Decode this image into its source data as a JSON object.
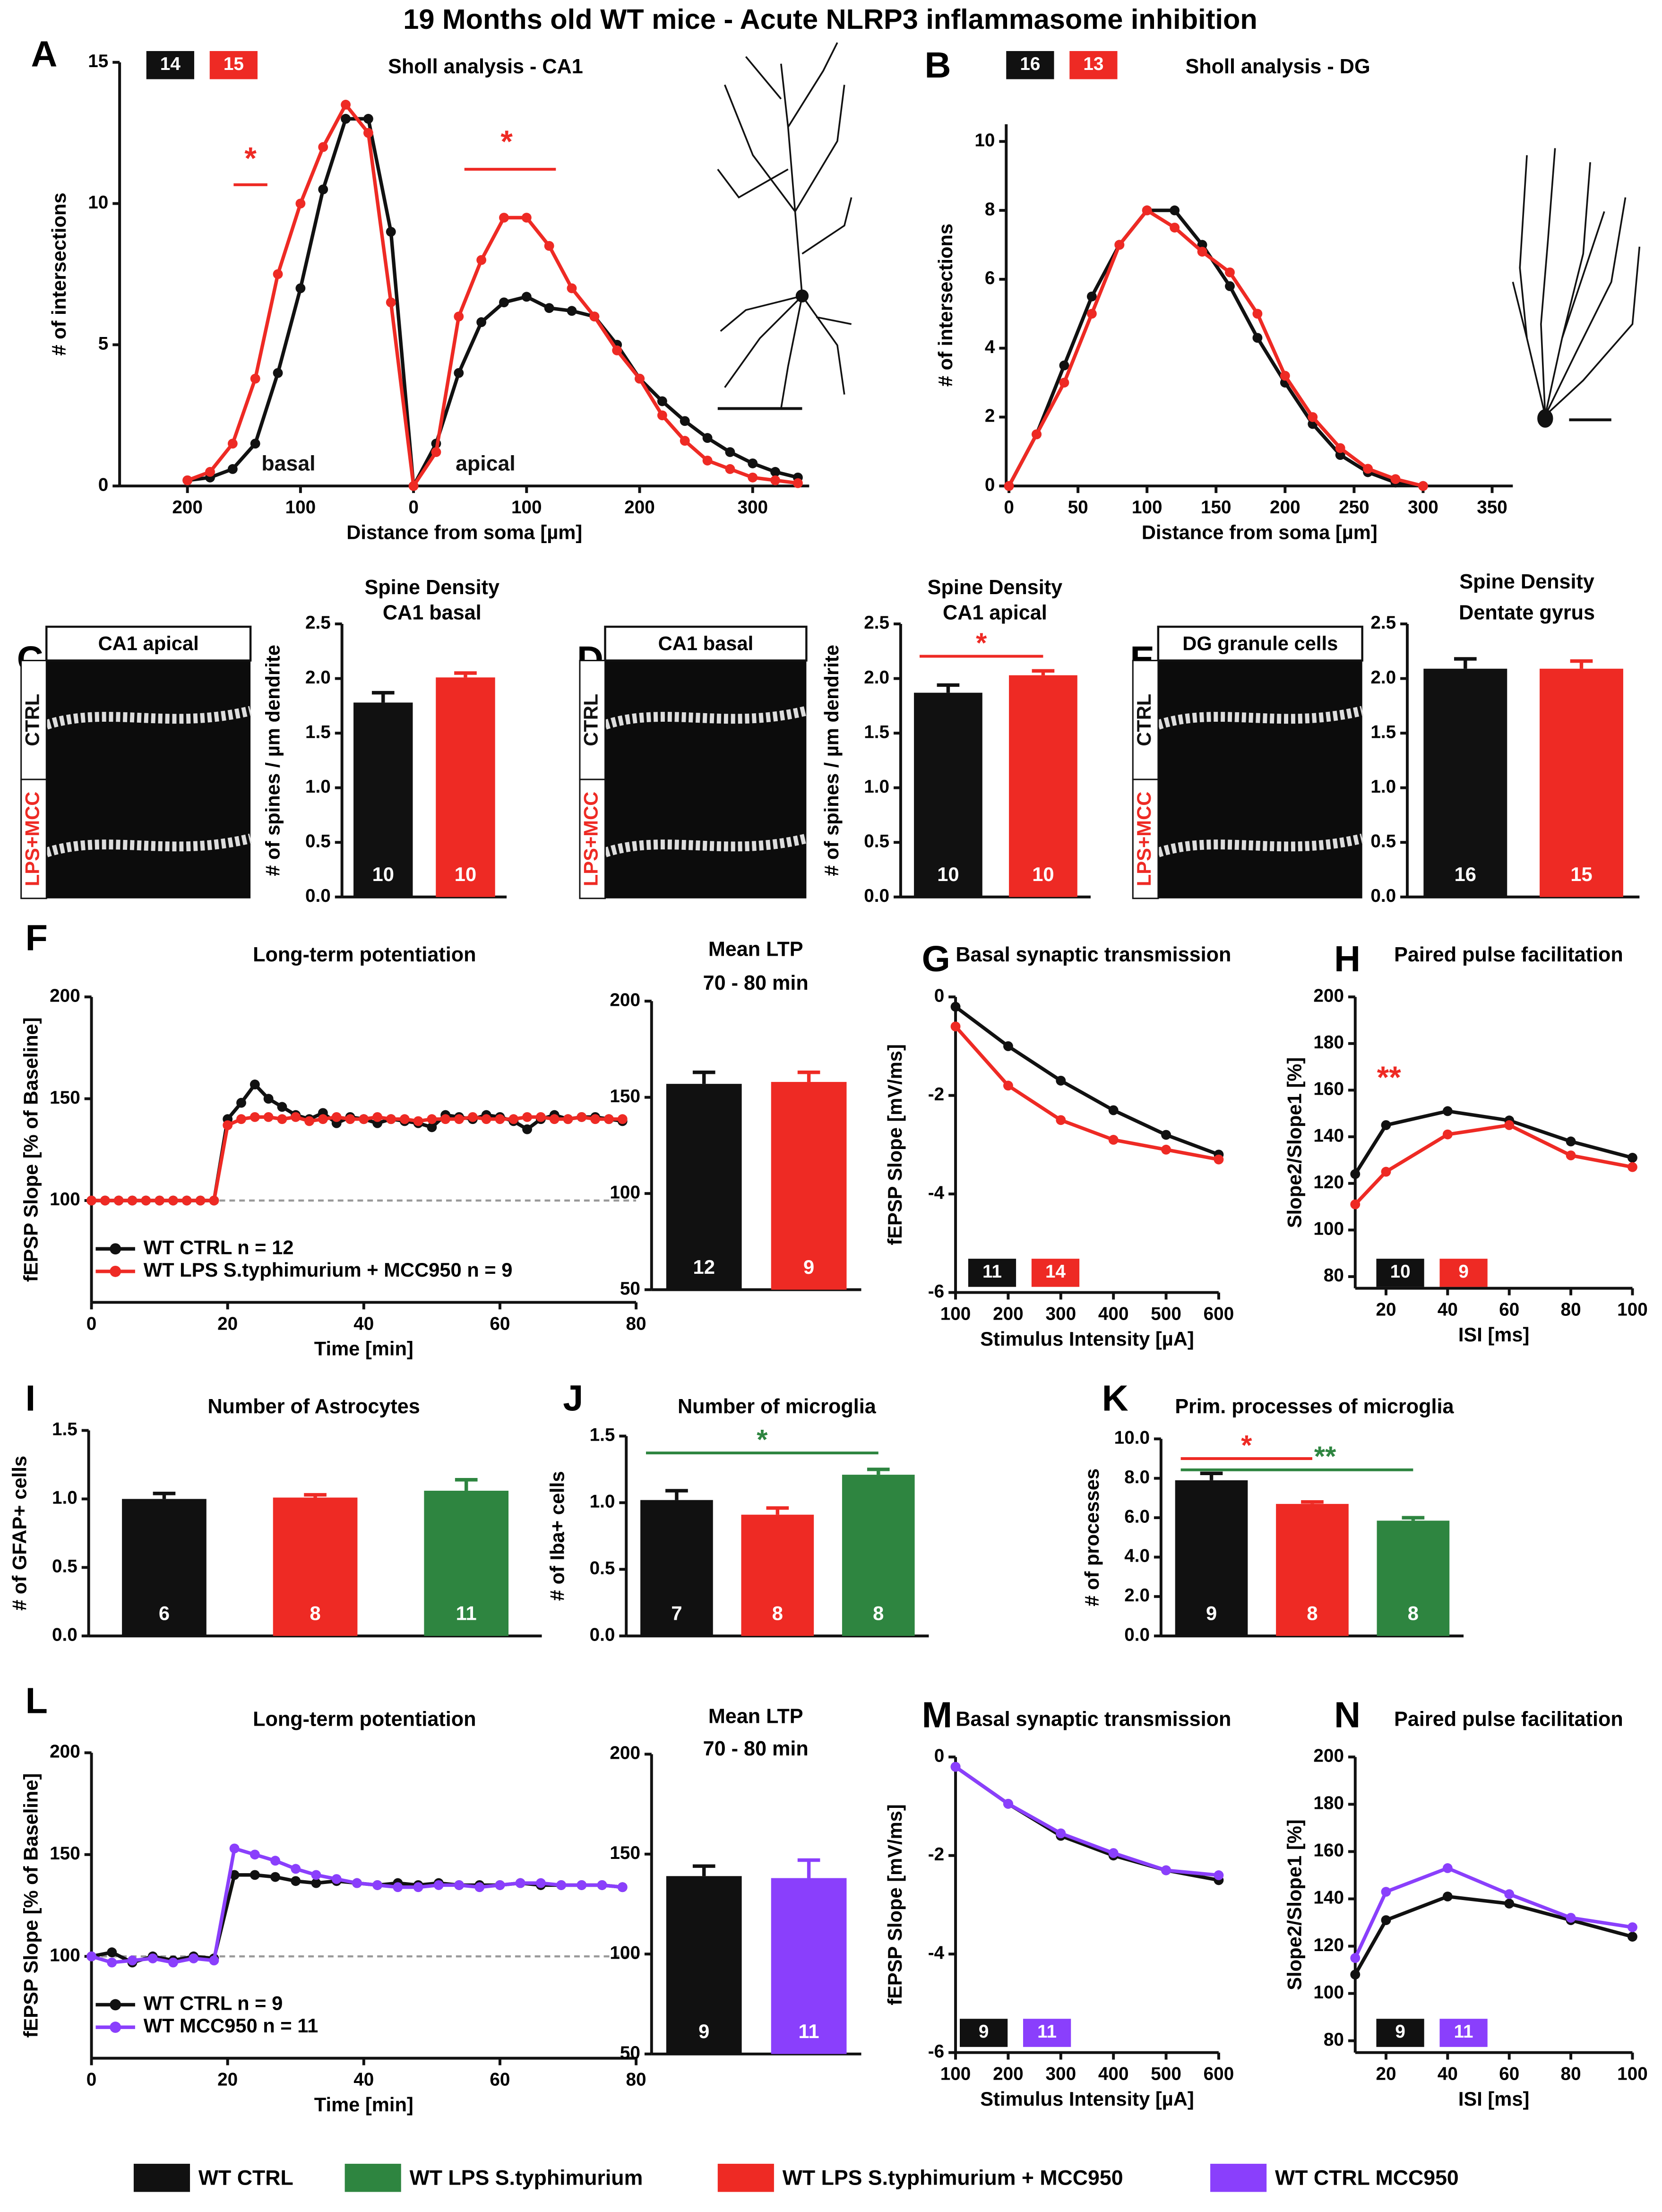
{
  "title": "19 Months old WT mice - Acute NLRP3 inflammasome inhibition",
  "legend": [
    {
      "name": "WT CTRL",
      "color": "#111111"
    },
    {
      "name": "WT LPS S.typhimurium",
      "color": "#2e8540"
    },
    {
      "name": "WT LPS S.typhimurium + MCC950",
      "color": "#ee2a24"
    },
    {
      "name": "WT CTRL MCC950",
      "color": "#8a3ffc"
    }
  ],
  "chart_data": [
    {
      "type": "line",
      "panel": "A",
      "title": "Sholl analysis - CA1",
      "xlabel": "Distance from soma [µm]",
      "ylabel": "# of intersections",
      "badges": [
        14,
        15
      ],
      "x": [
        -200,
        -180,
        -160,
        -140,
        -120,
        -100,
        -80,
        -60,
        -40,
        -20,
        0,
        20,
        40,
        60,
        80,
        100,
        120,
        140,
        160,
        180,
        200,
        220,
        240,
        260,
        280,
        300,
        320,
        340
      ],
      "series": [
        {
          "color": "#111111",
          "values": [
            0.2,
            0.3,
            0.6,
            1.5,
            4,
            7,
            10.5,
            13,
            13,
            9,
            0,
            1.5,
            4,
            5.8,
            6.5,
            6.7,
            6.3,
            6.2,
            6,
            5,
            3.8,
            3,
            2.3,
            1.7,
            1.2,
            0.8,
            0.5,
            0.3
          ]
        },
        {
          "color": "#ee2a24",
          "values": [
            0.2,
            0.5,
            1.5,
            3.8,
            7.5,
            10,
            12,
            13.5,
            12.5,
            6.5,
            0,
            1.2,
            6,
            8,
            9.5,
            9.5,
            8.5,
            7,
            6,
            4.8,
            3.8,
            2.5,
            1.6,
            0.9,
            0.6,
            0.3,
            0.2,
            0.1
          ]
        }
      ],
      "xlim": [
        -260,
        350
      ],
      "xticks": [
        {
          "value": -200,
          "label": "200"
        },
        {
          "value": -100,
          "label": "100"
        },
        0,
        100,
        200,
        300
      ],
      "ylim": [
        0,
        15
      ],
      "yticks": [
        0,
        5,
        10,
        15
      ],
      "annotations": [
        {
          "text": "*",
          "color": "#ee2a24"
        },
        {
          "text": "*",
          "color": "#ee2a24"
        },
        {
          "text": "basal",
          "color": "#111111"
        },
        {
          "text": "apical",
          "color": "#111111"
        }
      ]
    },
    {
      "type": "line",
      "panel": "B",
      "title": "Sholl analysis - DG",
      "xlabel": "Distance from soma [µm]",
      "ylabel": "# of intersections",
      "badges": [
        16,
        13
      ],
      "x": [
        0,
        20,
        40,
        60,
        80,
        100,
        120,
        140,
        160,
        180,
        200,
        220,
        240,
        260,
        280,
        300
      ],
      "series": [
        {
          "color": "#111111",
          "values": [
            0,
            1.5,
            3.5,
            5.5,
            7,
            8,
            8,
            7,
            5.8,
            4.3,
            3,
            1.8,
            0.9,
            0.4,
            0.1,
            0
          ]
        },
        {
          "color": "#ee2a24",
          "values": [
            0,
            1.5,
            3,
            5,
            7,
            8,
            7.5,
            6.8,
            6.2,
            5,
            3.2,
            2,
            1.1,
            0.5,
            0.2,
            0
          ]
        }
      ],
      "xlim": [
        -2,
        365
      ],
      "xticks": [
        0,
        50,
        100,
        150,
        200,
        250,
        300,
        350
      ],
      "ylim": [
        0,
        10.5
      ],
      "yticks": [
        0,
        2,
        4,
        6,
        8,
        10
      ]
    },
    {
      "type": "bar",
      "panel": "C",
      "title": "Spine Density",
      "subtitle": "CA1 basal",
      "ylabel": "# of spines / µm dendrite",
      "image": {
        "title": "CA1 apical",
        "labels": [
          "CTRL",
          "LPS+MCC"
        ]
      },
      "values": [
        1.78,
        2.01
      ],
      "errors": [
        0.09,
        0.04
      ],
      "colors": [
        "#111111",
        "#ee2a24"
      ],
      "n": [
        10,
        10
      ],
      "ylim": [
        0,
        2.5
      ],
      "yticks": [
        {
          "value": 0,
          "label": "0.0"
        },
        {
          "value": 0.5,
          "label": "0.5"
        },
        {
          "value": 1,
          "label": "1.0"
        },
        {
          "value": 1.5,
          "label": "1.5"
        },
        {
          "value": 2,
          "label": "2.0"
        },
        {
          "value": 2.5,
          "label": "2.5"
        }
      ]
    },
    {
      "type": "bar",
      "panel": "D",
      "title": "Spine Density",
      "subtitle": "CA1 apical",
      "ylabel": "# of spines / µm dendrite",
      "image": {
        "title": "CA1 basal",
        "labels": [
          "CTRL",
          "LPS+MCC"
        ]
      },
      "values": [
        1.87,
        2.03
      ],
      "errors": [
        0.07,
        0.04
      ],
      "colors": [
        "#111111",
        "#ee2a24"
      ],
      "n": [
        10,
        10
      ],
      "ylim": [
        0,
        2.5
      ],
      "yticks": [
        {
          "value": 0,
          "label": "0.0"
        },
        {
          "value": 0.5,
          "label": "0.5"
        },
        {
          "value": 1,
          "label": "1.0"
        },
        {
          "value": 1.5,
          "label": "1.5"
        },
        {
          "value": 2,
          "label": "2.0"
        },
        {
          "value": 2.5,
          "label": "2.5"
        }
      ],
      "significance": [
        {
          "text": "*",
          "from": 0,
          "to": 1,
          "color": "#ee2a24"
        }
      ]
    },
    {
      "type": "bar",
      "panel": "E",
      "title": "Spine Density",
      "subtitle": "Dentate gyrus",
      "ylabel": "# of spines / µm dendrite",
      "image": {
        "title": "DG granule cells",
        "labels": [
          "CTRL",
          "LPS+MCC"
        ]
      },
      "values": [
        2.09,
        2.09
      ],
      "errors": [
        0.09,
        0.07
      ],
      "colors": [
        "#111111",
        "#ee2a24"
      ],
      "n": [
        16,
        15
      ],
      "ylim": [
        0,
        2.5
      ],
      "yticks": [
        {
          "value": 0,
          "label": "0.0"
        },
        {
          "value": 0.5,
          "label": "0.5"
        },
        {
          "value": 1,
          "label": "1.0"
        },
        {
          "value": 1.5,
          "label": "1.5"
        },
        {
          "value": 2,
          "label": "2.0"
        },
        {
          "value": 2.5,
          "label": "2.5"
        }
      ]
    },
    {
      "type": "line",
      "panel": "F",
      "title": "Long-term potentiation",
      "xlabel": "Time [min]",
      "ylabel": "fEPSP Slope [% of Baseline]",
      "baseline": 100,
      "x": [
        0,
        2,
        4,
        6,
        8,
        10,
        12,
        14,
        16,
        18,
        20,
        22,
        24,
        26,
        28,
        30,
        32,
        34,
        36,
        38,
        40,
        42,
        44,
        46,
        48,
        50,
        52,
        54,
        56,
        58,
        60,
        62,
        64,
        66,
        68,
        70,
        72,
        74,
        76,
        78
      ],
      "series": [
        {
          "name": "WT CTRL n = 12",
          "color": "#111111",
          "values": [
            100,
            100,
            100,
            100,
            100,
            100,
            100,
            100,
            100,
            100,
            140,
            148,
            157,
            150,
            146,
            142,
            140,
            143,
            138,
            141,
            140,
            138,
            140,
            139,
            138,
            136,
            142,
            141,
            140,
            142,
            141,
            139,
            135,
            140,
            142,
            140,
            141,
            141,
            140,
            139
          ]
        },
        {
          "name": "WT LPS S.typhimurium + MCC950 n = 9",
          "color": "#ee2a24",
          "values": [
            100,
            100,
            100,
            100,
            100,
            100,
            100,
            100,
            100,
            100,
            137,
            140,
            141,
            141,
            140,
            141,
            139,
            140,
            141,
            140,
            140,
            141,
            140,
            140,
            139,
            140,
            140,
            140,
            141,
            140,
            140,
            140,
            141,
            141,
            140,
            140,
            141,
            140,
            140,
            140
          ]
        }
      ],
      "xlim": [
        0,
        80
      ],
      "xticks": [
        0,
        20,
        40,
        60,
        80
      ],
      "ylim": [
        50,
        200
      ],
      "yticks": [
        100,
        150,
        200
      ]
    },
    {
      "type": "bar",
      "title": "Mean LTP",
      "subtitle": "70 - 80 min",
      "values": [
        157,
        158
      ],
      "errors": [
        6,
        5
      ],
      "colors": [
        "#111111",
        "#ee2a24"
      ],
      "n": [
        12,
        9
      ],
      "ylim": [
        50,
        200
      ],
      "yticks": [
        50,
        100,
        150,
        200
      ]
    },
    {
      "type": "line",
      "panel": "G",
      "title": "Basal synaptic transmission",
      "xlabel": "Stimulus Intensity [µA]",
      "ylabel": "fEPSP Slope [mV/ms]",
      "badges": [
        11,
        14
      ],
      "x": [
        100,
        200,
        300,
        400,
        500,
        600
      ],
      "series": [
        {
          "color": "#111111",
          "values": [
            -0.2,
            -1,
            -1.7,
            -2.3,
            -2.8,
            -3.2
          ]
        },
        {
          "color": "#ee2a24",
          "values": [
            -0.6,
            -1.8,
            -2.5,
            -2.9,
            -3.1,
            -3.3
          ]
        }
      ],
      "xlim": [
        100,
        600
      ],
      "xticks": [
        100,
        200,
        300,
        400,
        500,
        600
      ],
      "ylim": [
        -6,
        0
      ],
      "yticks": [
        -6,
        -4,
        -2,
        0
      ]
    },
    {
      "type": "line",
      "panel": "H",
      "title": "Paired pulse facilitation",
      "xlabel": "ISI [ms]",
      "ylabel": "Slope2/Slope1 [%]",
      "badges": [
        10,
        9
      ],
      "x": [
        10,
        20,
        40,
        60,
        80,
        100
      ],
      "series": [
        {
          "color": "#111111",
          "values": [
            124,
            145,
            151,
            147,
            138,
            131
          ]
        },
        {
          "color": "#ee2a24",
          "values": [
            111,
            125,
            141,
            145,
            132,
            127
          ]
        }
      ],
      "xlim": [
        10,
        100
      ],
      "xticks": [
        20,
        40,
        60,
        80,
        100
      ],
      "ylim": [
        75,
        200
      ],
      "yticks": [
        80,
        100,
        120,
        140,
        160,
        180,
        200
      ],
      "annotations": [
        {
          "text": "**",
          "color": "#ee2a24"
        }
      ]
    },
    {
      "type": "bar",
      "panel": "I",
      "title": "Number of Astrocytes",
      "ylabel": "# of GFAP+ cells",
      "values": [
        1,
        1.01,
        1.06
      ],
      "errors": [
        0.04,
        0.02,
        0.08
      ],
      "colors": [
        "#111111",
        "#ee2a24",
        "#2e8540"
      ],
      "n": [
        6,
        8,
        11
      ],
      "ylim": [
        0,
        1.5
      ],
      "yticks": [
        {
          "value": 0,
          "label": "0.0"
        },
        {
          "value": 0.5,
          "label": "0.5"
        },
        {
          "value": 1,
          "label": "1.0"
        },
        {
          "value": 1.5,
          "label": "1.5"
        }
      ]
    },
    {
      "type": "bar",
      "panel": "J",
      "title": "Number of microglia",
      "ylabel": "# of Iba+ cells",
      "values": [
        1.02,
        0.91,
        1.21
      ],
      "errors": [
        0.07,
        0.05,
        0.04
      ],
      "colors": [
        "#111111",
        "#ee2a24",
        "#2e8540"
      ],
      "n": [
        7,
        8,
        8
      ],
      "ylim": [
        0,
        1.5
      ],
      "yticks": [
        {
          "value": 0,
          "label": "0.0"
        },
        {
          "value": 0.5,
          "label": "0.5"
        },
        {
          "value": 1,
          "label": "1.0"
        },
        {
          "value": 1.5,
          "label": "1.5"
        }
      ],
      "significance": [
        {
          "text": "*",
          "from": 0,
          "to": 2,
          "color": "#2e8540"
        }
      ]
    },
    {
      "type": "bar",
      "panel": "K",
      "title": "Prim. processes of microglia",
      "ylabel": "# of processes",
      "values": [
        7.9,
        6.7,
        5.85
      ],
      "errors": [
        0.35,
        0.1,
        0.15
      ],
      "colors": [
        "#111111",
        "#ee2a24",
        "#2e8540"
      ],
      "n": [
        9,
        8,
        8
      ],
      "ylim": [
        0,
        10
      ],
      "yticks": [
        {
          "value": 0,
          "label": "0.0"
        },
        {
          "value": 2,
          "label": "2.0"
        },
        {
          "value": 4,
          "label": "4.0"
        },
        {
          "value": 6,
          "label": "6.0"
        },
        {
          "value": 8,
          "label": "8.0"
        },
        {
          "value": 10,
          "label": "10.0"
        }
      ],
      "significance": [
        {
          "text": "*",
          "from": 0,
          "to": 1,
          "color": "#ee2a24"
        },
        {
          "text": "**",
          "from": 0,
          "to": 2,
          "color": "#2e8540"
        }
      ]
    },
    {
      "type": "line",
      "panel": "L",
      "title": "Long-term potentiation",
      "xlabel": "Time [min]",
      "ylabel": "fEPSP Slope [% of Baseline]",
      "baseline": 100,
      "x": [
        0,
        3,
        6,
        9,
        12,
        15,
        18,
        21,
        24,
        27,
        30,
        33,
        36,
        39,
        42,
        45,
        48,
        51,
        54,
        57,
        60,
        63,
        66,
        69,
        72,
        75,
        78
      ],
      "series": [
        {
          "name": "WT CTRL n = 9",
          "color": "#111111",
          "values": [
            100,
            102,
            97,
            100,
            98,
            100,
            99,
            140,
            140,
            139,
            137,
            136,
            137,
            136,
            135,
            136,
            135,
            136,
            135,
            135,
            135,
            136,
            135,
            135,
            135,
            135,
            134
          ]
        },
        {
          "name": "WT MCC950 n = 11",
          "color": "#8a3ffc",
          "values": [
            100,
            97,
            98,
            99,
            97,
            99,
            98,
            153,
            150,
            147,
            143,
            140,
            138,
            136,
            135,
            134,
            134,
            135,
            135,
            134,
            135,
            136,
            136,
            135,
            135,
            135,
            134
          ]
        }
      ],
      "xlim": [
        0,
        80
      ],
      "xticks": [
        0,
        20,
        40,
        60,
        80
      ],
      "ylim": [
        50,
        200
      ],
      "yticks": [
        100,
        150,
        200
      ]
    },
    {
      "type": "bar",
      "title": "Mean LTP",
      "subtitle": "70 - 80 min",
      "values": [
        139,
        138
      ],
      "errors": [
        5,
        9
      ],
      "colors": [
        "#111111",
        "#8a3ffc"
      ],
      "n": [
        9,
        11
      ],
      "ylim": [
        50,
        200
      ],
      "yticks": [
        50,
        100,
        150,
        200
      ]
    },
    {
      "type": "line",
      "panel": "M",
      "title": "Basal synaptic transmission",
      "xlabel": "Stimulus Intensity [µA]",
      "ylabel": "fEPSP Slope [mV/ms]",
      "badges": [
        9,
        11
      ],
      "x": [
        100,
        200,
        300,
        400,
        500,
        600
      ],
      "series": [
        {
          "color": "#111111",
          "values": [
            -0.2,
            -0.95,
            -1.6,
            -2,
            -2.3,
            -2.5
          ]
        },
        {
          "color": "#8a3ffc",
          "values": [
            -0.2,
            -0.95,
            -1.55,
            -1.95,
            -2.3,
            -2.4
          ]
        }
      ],
      "xlim": [
        100,
        600
      ],
      "xticks": [
        100,
        200,
        300,
        400,
        500,
        600
      ],
      "ylim": [
        -6,
        0
      ],
      "yticks": [
        -6,
        -4,
        -2,
        0
      ]
    },
    {
      "type": "line",
      "panel": "N",
      "title": "Paired pulse facilitation",
      "xlabel": "ISI [ms]",
      "ylabel": "Slope2/Slope1 [%]",
      "badges": [
        9,
        11
      ],
      "x": [
        10,
        20,
        40,
        60,
        80,
        100
      ],
      "series": [
        {
          "color": "#111111",
          "values": [
            108,
            131,
            141,
            138,
            131,
            124
          ]
        },
        {
          "color": "#8a3ffc",
          "values": [
            115,
            143,
            153,
            142,
            132,
            128
          ]
        }
      ],
      "xlim": [
        10,
        100
      ],
      "xticks": [
        20,
        40,
        60,
        80,
        100
      ],
      "ylim": [
        75,
        200
      ],
      "yticks": [
        80,
        100,
        120,
        140,
        160,
        180,
        200
      ]
    }
  ]
}
